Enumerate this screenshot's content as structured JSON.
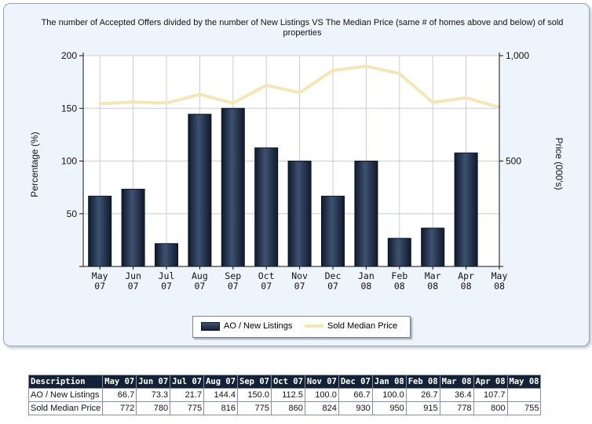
{
  "chart_data": {
    "type": "bar",
    "title": "The number of Accepted Offers divided by the number of New Listings VS The Median Price (same # of homes above and below) of sold properties",
    "ylabel": "Percentage (%)",
    "y2label": "Price (000's)",
    "ylim": [
      0,
      200
    ],
    "y2lim": [
      0,
      1000
    ],
    "yticks": [
      "50",
      "100",
      "150",
      "200"
    ],
    "y2ticks": [
      "500",
      "1,000"
    ],
    "grid": true,
    "legend_position": "bottom-center",
    "categories": [
      {
        "month": "May",
        "year": "07"
      },
      {
        "month": "Jun",
        "year": "07"
      },
      {
        "month": "Jul",
        "year": "07"
      },
      {
        "month": "Aug",
        "year": "07"
      },
      {
        "month": "Sep",
        "year": "07"
      },
      {
        "month": "Oct",
        "year": "07"
      },
      {
        "month": "Nov",
        "year": "07"
      },
      {
        "month": "Dec",
        "year": "07"
      },
      {
        "month": "Jan",
        "year": "08"
      },
      {
        "month": "Feb",
        "year": "08"
      },
      {
        "month": "Mar",
        "year": "08"
      },
      {
        "month": "Apr",
        "year": "08"
      },
      {
        "month": "May",
        "year": "08"
      }
    ],
    "series": [
      {
        "name": "AO / New Listings",
        "type": "bar",
        "axis": "left",
        "color": "#1d2d48",
        "values": [
          66.7,
          73.3,
          21.7,
          144.4,
          150.0,
          112.5,
          100.0,
          66.7,
          100.0,
          26.7,
          36.4,
          107.7,
          null
        ]
      },
      {
        "name": "Sold Median Price",
        "type": "line",
        "axis": "right",
        "color": "#f5e6b8",
        "values": [
          772,
          780,
          775,
          816,
          775,
          860,
          824,
          930,
          950,
          915,
          778,
          800,
          755
        ]
      }
    ]
  },
  "table": {
    "header_label": "Description",
    "columns": [
      "May 07",
      "Jun 07",
      "Jul 07",
      "Aug 07",
      "Sep 07",
      "Oct 07",
      "Nov 07",
      "Dec 07",
      "Jan 08",
      "Feb 08",
      "Mar 08",
      "Apr 08",
      "May 08"
    ],
    "rows": [
      {
        "label": "AO / New Listings",
        "cells": [
          "66.7",
          "73.3",
          "21.7",
          "144.4",
          "150.0",
          "112.5",
          "100.0",
          "66.7",
          "100.0",
          "26.7",
          "36.4",
          "107.7",
          ""
        ]
      },
      {
        "label": "Sold Median Price",
        "cells": [
          "772",
          "780",
          "775",
          "816",
          "775",
          "860",
          "824",
          "930",
          "950",
          "915",
          "778",
          "800",
          "755"
        ]
      }
    ]
  }
}
